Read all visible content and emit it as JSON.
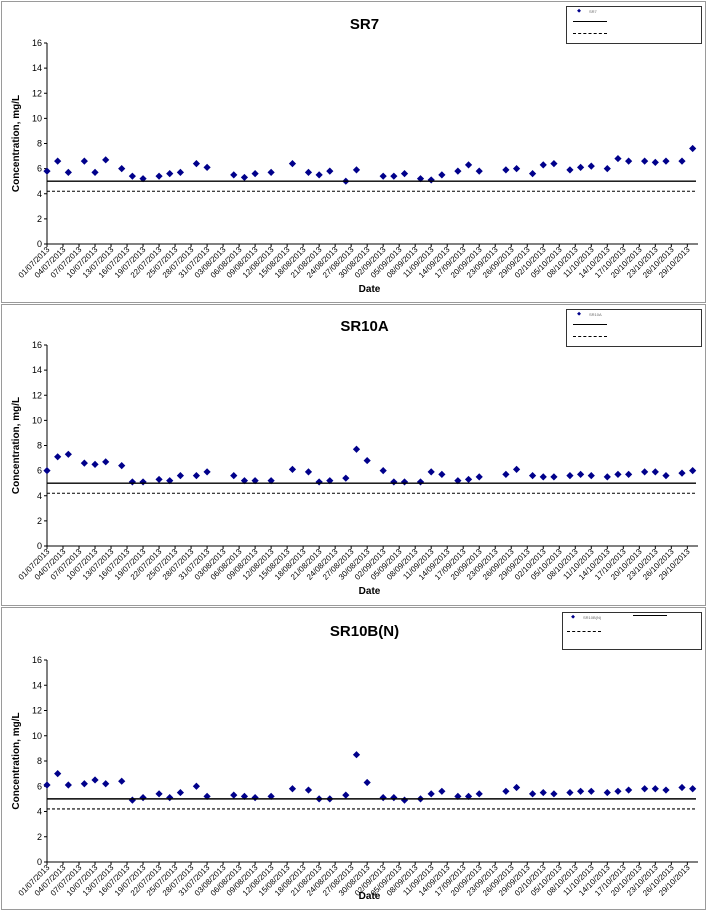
{
  "theme": {
    "marker_color": "#00008b",
    "line_color": "#000000",
    "border_color": "#9a9a9a"
  },
  "chart_data": [
    {
      "type": "scatter",
      "title": "SR7",
      "xlabel": "Date",
      "ylabel": "Concentration, mg/L",
      "ylim": [
        0,
        16
      ],
      "yticks": [
        0,
        2,
        4,
        6,
        8,
        10,
        12,
        14,
        16
      ],
      "xlim": [
        "01/07/2013",
        "31/10/2013"
      ],
      "xticks": [
        "01/07/2013",
        "04/07/2013",
        "07/07/2013",
        "10/07/2013",
        "13/07/2013",
        "16/07/2013",
        "19/07/2013",
        "22/07/2013",
        "25/07/2013",
        "28/07/2013",
        "31/07/2013",
        "03/08/2013",
        "06/08/2013",
        "09/08/2013",
        "12/08/2013",
        "15/08/2013",
        "18/08/2013",
        "21/08/2013",
        "24/08/2013",
        "27/08/2013",
        "30/08/2013",
        "02/09/2013",
        "05/09/2013",
        "08/09/2013",
        "11/09/2013",
        "14/09/2013",
        "17/09/2013",
        "20/09/2013",
        "23/09/2013",
        "26/09/2013",
        "29/09/2013",
        "02/10/2013",
        "05/10/2013",
        "08/10/2013",
        "11/10/2013",
        "14/10/2013",
        "17/10/2013",
        "20/10/2013",
        "23/10/2013",
        "26/10/2013",
        "29/10/2013"
      ],
      "legend": {
        "position": "top-right",
        "entries": [
          "SR7",
          "",
          ""
        ]
      },
      "series": [
        {
          "name": "SR7",
          "kind": "points",
          "x": [
            "01/07/2013",
            "03/07/2013",
            "05/07/2013",
            "08/07/2013",
            "10/07/2013",
            "12/07/2013",
            "15/07/2013",
            "17/07/2013",
            "19/07/2013",
            "22/07/2013",
            "24/07/2013",
            "26/07/2013",
            "29/07/2013",
            "31/07/2013",
            "05/08/2013",
            "07/08/2013",
            "09/08/2013",
            "12/08/2013",
            "16/08/2013",
            "19/08/2013",
            "21/08/2013",
            "23/08/2013",
            "26/08/2013",
            "28/08/2013",
            "02/09/2013",
            "04/09/2013",
            "06/09/2013",
            "09/09/2013",
            "11/09/2013",
            "13/09/2013",
            "16/09/2013",
            "18/09/2013",
            "20/09/2013",
            "25/09/2013",
            "27/09/2013",
            "30/09/2013",
            "02/10/2013",
            "04/10/2013",
            "07/10/2013",
            "09/10/2013",
            "11/10/2013",
            "14/10/2013",
            "16/10/2013",
            "18/10/2013",
            "21/10/2013",
            "23/10/2013",
            "25/10/2013",
            "28/10/2013",
            "30/10/2013"
          ],
          "values": [
            5.8,
            6.6,
            5.7,
            6.6,
            5.7,
            6.7,
            6.0,
            5.4,
            5.2,
            5.4,
            5.6,
            5.7,
            6.4,
            6.1,
            5.5,
            5.3,
            5.6,
            5.7,
            6.4,
            5.7,
            5.5,
            5.8,
            5.0,
            5.9,
            5.4,
            5.4,
            5.6,
            5.2,
            5.1,
            5.5,
            5.8,
            6.3,
            5.8,
            5.9,
            6.0,
            5.6,
            6.3,
            6.4,
            5.9,
            6.1,
            6.2,
            6.0,
            6.8,
            6.6,
            6.6,
            6.5,
            6.6,
            6.6,
            7.6
          ]
        },
        {
          "name": "",
          "kind": "hline",
          "y": 5.0
        },
        {
          "name": "",
          "kind": "hline-dashed",
          "y": 4.2
        }
      ]
    },
    {
      "type": "scatter",
      "title": "SR10A",
      "xlabel": "Date",
      "ylabel": "Concentration, mg/L",
      "ylim": [
        0,
        16
      ],
      "yticks": [
        0,
        2,
        4,
        6,
        8,
        10,
        12,
        14,
        16
      ],
      "xlim": [
        "01/07/2013",
        "31/10/2013"
      ],
      "xticks": [
        "01/07/2013",
        "04/07/2013",
        "07/07/2013",
        "10/07/2013",
        "13/07/2013",
        "16/07/2013",
        "19/07/2013",
        "22/07/2013",
        "25/07/2013",
        "28/07/2013",
        "31/07/2013",
        "03/08/2013",
        "06/08/2013",
        "09/08/2013",
        "12/08/2013",
        "15/08/2013",
        "18/08/2013",
        "21/08/2013",
        "24/08/2013",
        "27/08/2013",
        "30/08/2013",
        "02/09/2013",
        "05/09/2013",
        "08/09/2013",
        "11/09/2013",
        "14/09/2013",
        "17/09/2013",
        "20/09/2013",
        "23/09/2013",
        "26/09/2013",
        "29/09/2013",
        "02/10/2013",
        "05/10/2013",
        "08/10/2013",
        "11/10/2013",
        "14/10/2013",
        "17/10/2013",
        "20/10/2013",
        "23/10/2013",
        "26/10/2013",
        "29/10/2013"
      ],
      "legend": {
        "position": "top-right",
        "entries": [
          "SR10A",
          "",
          ""
        ]
      },
      "series": [
        {
          "name": "SR10A",
          "kind": "points",
          "x": [
            "01/07/2013",
            "03/07/2013",
            "05/07/2013",
            "08/07/2013",
            "10/07/2013",
            "12/07/2013",
            "15/07/2013",
            "17/07/2013",
            "19/07/2013",
            "22/07/2013",
            "24/07/2013",
            "26/07/2013",
            "29/07/2013",
            "31/07/2013",
            "05/08/2013",
            "07/08/2013",
            "09/08/2013",
            "12/08/2013",
            "16/08/2013",
            "19/08/2013",
            "21/08/2013",
            "23/08/2013",
            "26/08/2013",
            "28/08/2013",
            "30/08/2013",
            "02/09/2013",
            "04/09/2013",
            "06/09/2013",
            "09/09/2013",
            "11/09/2013",
            "13/09/2013",
            "16/09/2013",
            "18/09/2013",
            "20/09/2013",
            "25/09/2013",
            "27/09/2013",
            "30/09/2013",
            "02/10/2013",
            "04/10/2013",
            "07/10/2013",
            "09/10/2013",
            "11/10/2013",
            "14/10/2013",
            "16/10/2013",
            "18/10/2013",
            "21/10/2013",
            "23/10/2013",
            "25/10/2013",
            "28/10/2013",
            "30/10/2013"
          ],
          "values": [
            6.0,
            7.1,
            7.3,
            6.6,
            6.5,
            6.7,
            6.4,
            5.1,
            5.1,
            5.3,
            5.2,
            5.6,
            5.6,
            5.9,
            5.6,
            5.2,
            5.2,
            5.2,
            6.1,
            5.9,
            5.1,
            5.2,
            5.4,
            7.7,
            6.8,
            6.0,
            5.1,
            5.1,
            5.1,
            5.9,
            5.7,
            5.2,
            5.3,
            5.5,
            5.7,
            6.1,
            5.6,
            5.5,
            5.5,
            5.6,
            5.7,
            5.6,
            5.5,
            5.7,
            5.7,
            5.9,
            5.9,
            5.6,
            5.8,
            6.0
          ]
        },
        {
          "name": "",
          "kind": "hline",
          "y": 5.0
        },
        {
          "name": "",
          "kind": "hline-dashed",
          "y": 4.2
        }
      ]
    },
    {
      "type": "scatter",
      "title": "SR10B(N)",
      "xlabel": "Date",
      "ylabel": "Concentration, mg/L",
      "ylim": [
        0,
        16
      ],
      "yticks": [
        0,
        2,
        4,
        6,
        8,
        10,
        12,
        14,
        16
      ],
      "xlim": [
        "01/07/2013",
        "31/10/2013"
      ],
      "xticks": [
        "01/07/2013",
        "04/07/2013",
        "07/07/2013",
        "10/07/2013",
        "13/07/2013",
        "16/07/2013",
        "19/07/2013",
        "22/07/2013",
        "25/07/2013",
        "28/07/2013",
        "31/07/2013",
        "03/08/2013",
        "06/08/2013",
        "09/08/2013",
        "12/08/2013",
        "15/08/2013",
        "18/08/2013",
        "21/08/2013",
        "24/08/2013",
        "27/08/2013",
        "30/08/2013",
        "02/09/2013",
        "05/09/2013",
        "08/09/2013",
        "11/09/2013",
        "14/09/2013",
        "17/09/2013",
        "20/09/2013",
        "23/09/2013",
        "26/09/2013",
        "29/09/2013",
        "02/10/2013",
        "05/10/2013",
        "08/10/2013",
        "11/10/2013",
        "14/10/2013",
        "17/10/2013",
        "20/10/2013",
        "23/10/2013",
        "26/10/2013",
        "29/10/2013"
      ],
      "legend": {
        "position": "top-right",
        "entries": [
          "SR10B(N)",
          "",
          ""
        ]
      },
      "series": [
        {
          "name": "SR10B(N)",
          "kind": "points",
          "x": [
            "01/07/2013",
            "03/07/2013",
            "05/07/2013",
            "08/07/2013",
            "10/07/2013",
            "12/07/2013",
            "15/07/2013",
            "17/07/2013",
            "19/07/2013",
            "22/07/2013",
            "24/07/2013",
            "26/07/2013",
            "29/07/2013",
            "31/07/2013",
            "05/08/2013",
            "07/08/2013",
            "09/08/2013",
            "12/08/2013",
            "16/08/2013",
            "19/08/2013",
            "21/08/2013",
            "23/08/2013",
            "26/08/2013",
            "28/08/2013",
            "30/08/2013",
            "02/09/2013",
            "04/09/2013",
            "06/09/2013",
            "09/09/2013",
            "11/09/2013",
            "13/09/2013",
            "16/09/2013",
            "18/09/2013",
            "20/09/2013",
            "25/09/2013",
            "27/09/2013",
            "30/09/2013",
            "02/10/2013",
            "04/10/2013",
            "07/10/2013",
            "09/10/2013",
            "11/10/2013",
            "14/10/2013",
            "16/10/2013",
            "18/10/2013",
            "21/10/2013",
            "23/10/2013",
            "25/10/2013",
            "28/10/2013",
            "30/10/2013"
          ],
          "values": [
            6.1,
            7.0,
            6.1,
            6.2,
            6.5,
            6.2,
            6.4,
            4.9,
            5.1,
            5.4,
            5.1,
            5.5,
            6.0,
            5.2,
            5.3,
            5.2,
            5.1,
            5.2,
            5.8,
            5.7,
            5.0,
            5.0,
            5.3,
            8.5,
            6.3,
            5.1,
            5.1,
            4.9,
            5.0,
            5.4,
            5.6,
            5.2,
            5.2,
            5.4,
            5.6,
            5.9,
            5.4,
            5.5,
            5.4,
            5.5,
            5.6,
            5.6,
            5.5,
            5.6,
            5.7,
            5.8,
            5.8,
            5.7,
            5.9,
            5.8
          ]
        },
        {
          "name": "",
          "kind": "hline",
          "y": 5.0
        },
        {
          "name": "",
          "kind": "hline-dashed",
          "y": 4.2
        }
      ]
    }
  ]
}
